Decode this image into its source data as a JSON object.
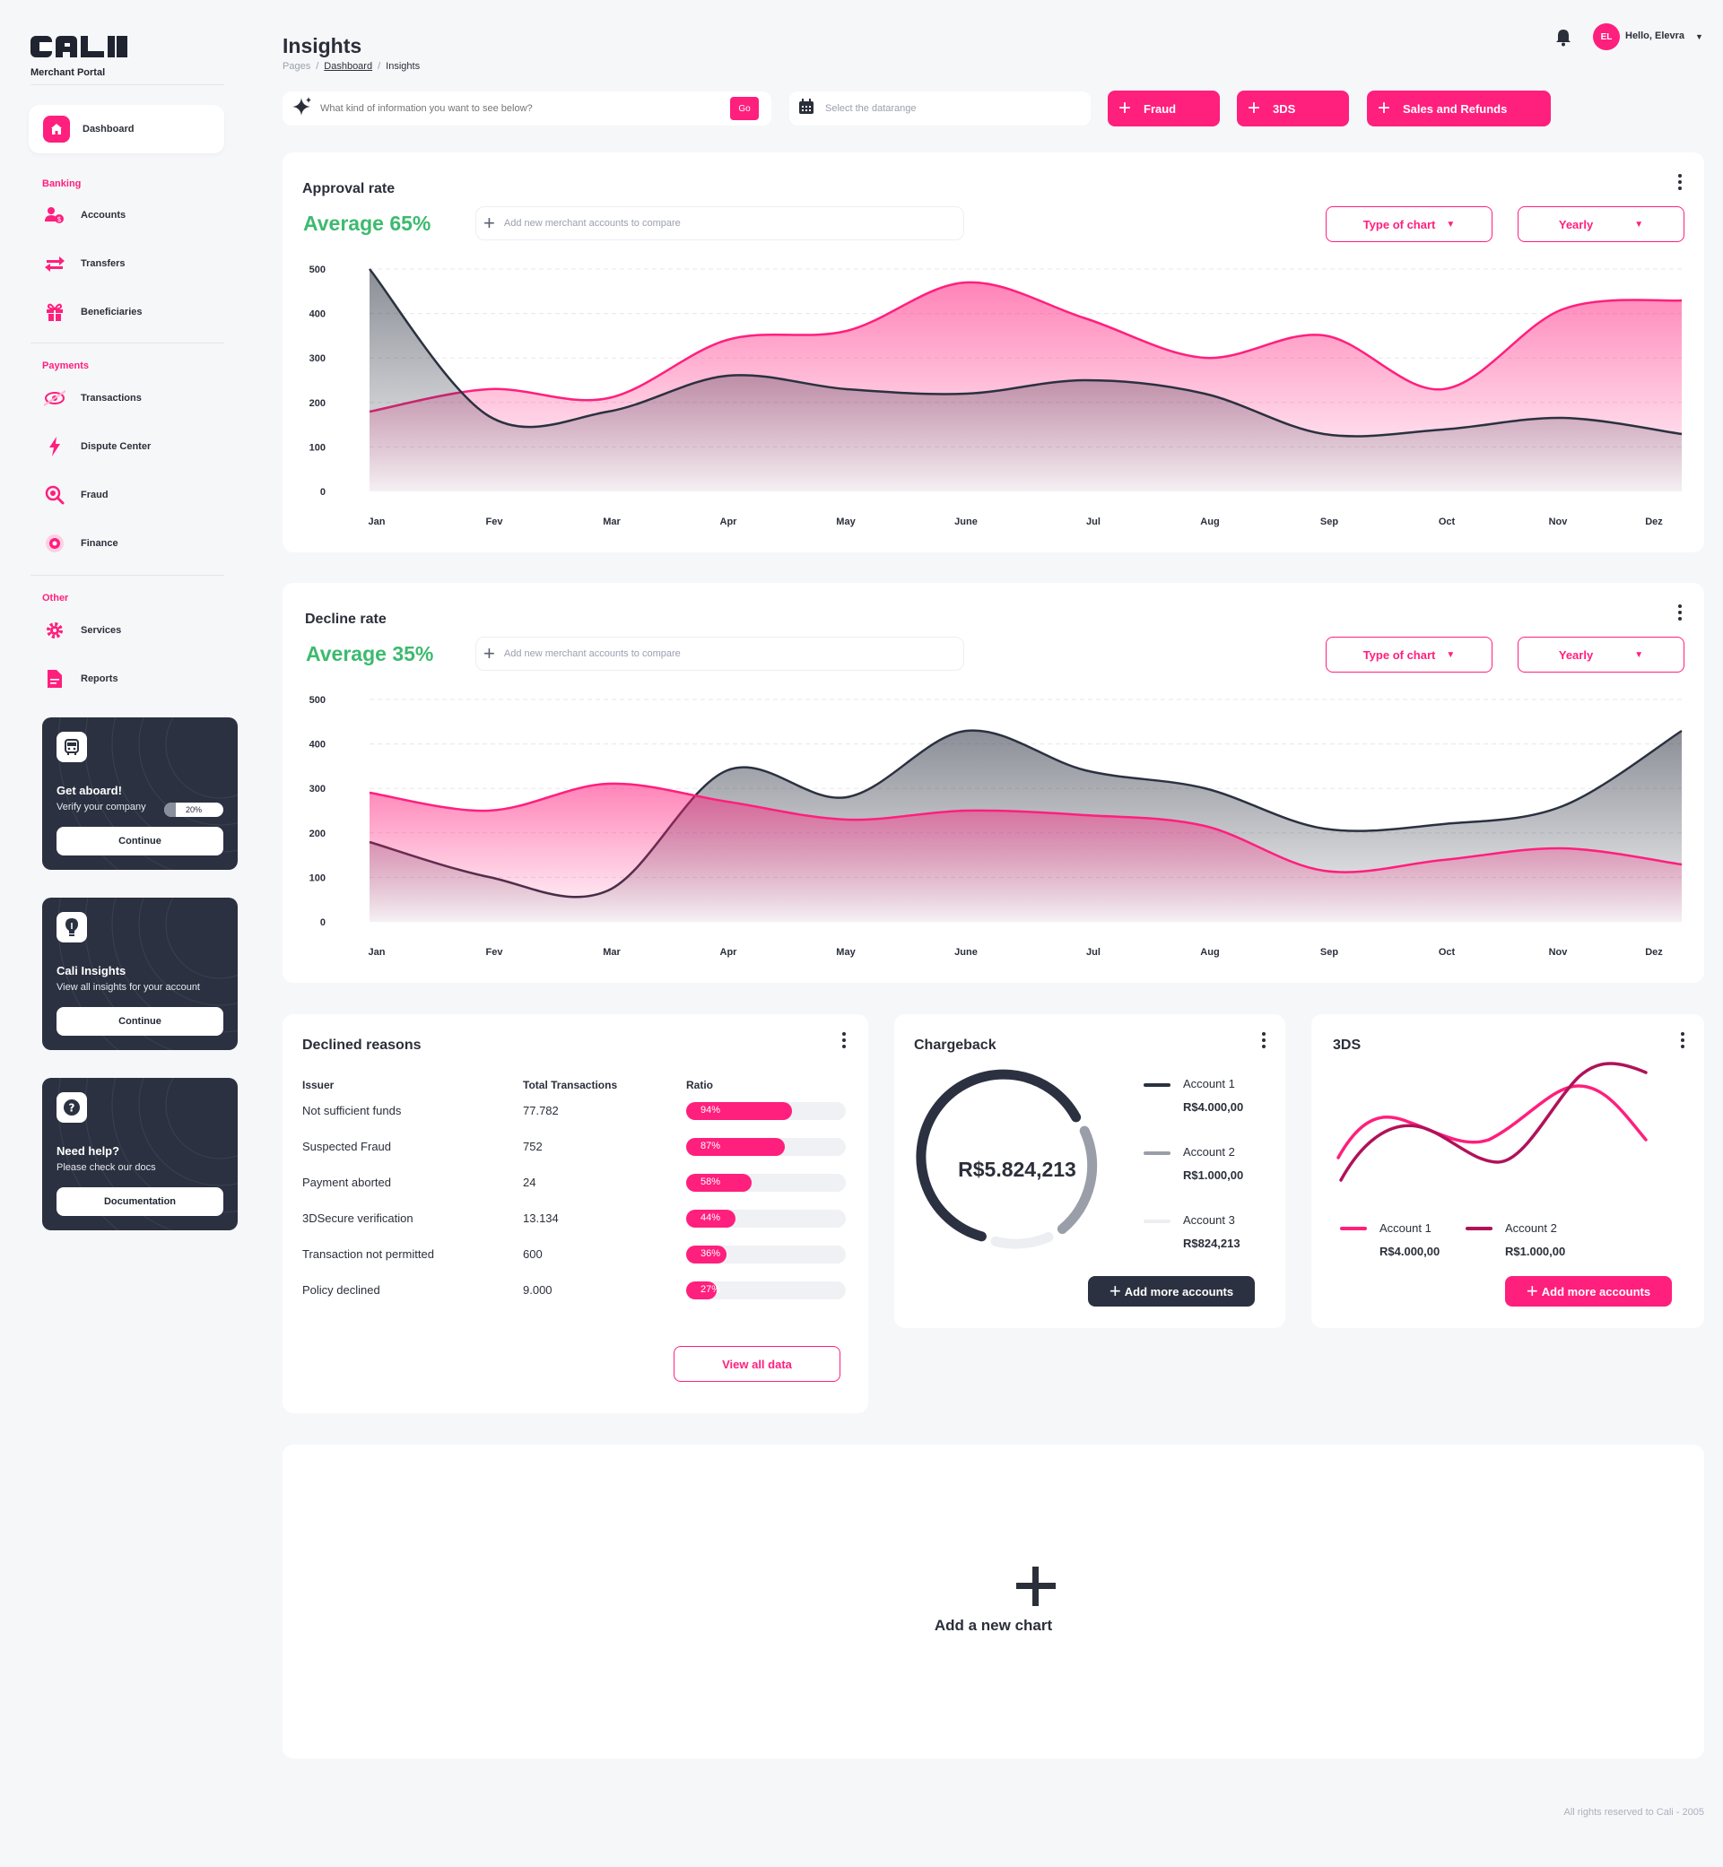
{
  "app": {
    "logo": "CALI",
    "subtitle": "Merchant Portal"
  },
  "nav": {
    "dashboard": "Dashboard",
    "sections": {
      "banking": "Banking",
      "payments": "Payments",
      "other": "Other"
    },
    "banking": [
      "Accounts",
      "Transfers",
      "Beneficiaries"
    ],
    "payments": [
      "Transactions",
      "Dispute Center",
      "Fraud",
      "Finance"
    ],
    "other": [
      "Services",
      "Reports"
    ]
  },
  "promos": [
    {
      "title": "Get aboard!",
      "subtitle": "Verify your company",
      "progress": "20%",
      "progress_value": 0.2,
      "button": "Continue"
    },
    {
      "title": "Cali Insights",
      "subtitle": "View all insights for your account",
      "button": "Continue"
    },
    {
      "title": "Need help?",
      "subtitle": "Please check our docs",
      "button": "Documentation"
    }
  ],
  "header": {
    "title": "Insights",
    "breadcrumb": [
      "Pages",
      "Dashboard",
      "Insights"
    ],
    "avatar": "EL",
    "greeting": "Hello, Elevra"
  },
  "toolbar": {
    "search_placeholder": "What kind of information you want to see below?",
    "go": "Go",
    "date_placeholder": "Select the datarange",
    "buttons": [
      "Fraud",
      "3DS",
      "Sales and Refunds"
    ]
  },
  "approval": {
    "title": "Approval rate",
    "average": "Average 65%",
    "compare_placeholder": "Add new merchant accounts to compare",
    "type_button": "Type of chart",
    "period_button": "Yearly"
  },
  "decline": {
    "title": "Decline rate",
    "average": "Average 35%",
    "compare_placeholder": "Add new merchant accounts to compare",
    "type_button": "Type of chart",
    "period_button": "Yearly"
  },
  "chart_data": [
    {
      "type": "area",
      "title": "Approval rate",
      "categories": [
        "Jan",
        "Fev",
        "Mar",
        "Apr",
        "May",
        "June",
        "Jul",
        "Aug",
        "Sep",
        "Oct",
        "Nov",
        "Dez"
      ],
      "ylim": [
        0,
        500
      ],
      "yticks": [
        0,
        100,
        200,
        300,
        400,
        500
      ],
      "grid": true,
      "colors": {
        "pink": "#ff1f7d",
        "dark": "#2b3140"
      },
      "series": [
        {
          "values": [
            180,
            230,
            210,
            340,
            360,
            470,
            390,
            300,
            350,
            230,
            410,
            430
          ]
        },
        {
          "values": [
            500,
            170,
            180,
            260,
            230,
            220,
            250,
            220,
            130,
            140,
            165,
            130
          ]
        }
      ]
    },
    {
      "type": "area",
      "title": "Decline rate",
      "categories": [
        "Jan",
        "Fev",
        "Mar",
        "Apr",
        "May",
        "June",
        "Jul",
        "Aug",
        "Sep",
        "Oct",
        "Nov",
        "Dez"
      ],
      "ylim": [
        0,
        500
      ],
      "yticks": [
        0,
        100,
        200,
        300,
        400,
        500
      ],
      "grid": true,
      "colors": {
        "pink": "#ff1f7d",
        "dark": "#2b3140"
      },
      "series": [
        {
          "values": [
            290,
            250,
            310,
            270,
            230,
            250,
            240,
            215,
            115,
            140,
            165,
            130
          ]
        },
        {
          "values": [
            180,
            100,
            70,
            340,
            280,
            430,
            340,
            300,
            210,
            220,
            260,
            430
          ]
        }
      ]
    }
  ],
  "declined": {
    "title": "Declined reasons",
    "headers": [
      "Issuer",
      "Total Transactions",
      "Ratio"
    ],
    "rows": [
      {
        "issuer": "Not sufficient funds",
        "total": "77.782",
        "ratio": "94%",
        "value": 0.94
      },
      {
        "issuer": "Suspected Fraud",
        "total": "752",
        "ratio": "87%",
        "value": 0.87
      },
      {
        "issuer": "Payment aborted",
        "total": "24",
        "ratio": "58%",
        "value": 0.58
      },
      {
        "issuer": "3DSecure verification",
        "total": "13.134",
        "ratio": "44%",
        "value": 0.44
      },
      {
        "issuer": "Transaction not permitted",
        "total": "600",
        "ratio": "36%",
        "value": 0.36
      },
      {
        "issuer": "Policy declined",
        "total": "9.000",
        "ratio": "27%",
        "value": 0.27
      }
    ],
    "button": "View all data"
  },
  "chargeback": {
    "title": "Chargeback",
    "total": "R$5.824,213",
    "accounts": [
      {
        "name": "Account 1",
        "value": "R$4.000,00",
        "color": "#2b3140"
      },
      {
        "name": "Account 2",
        "value": "R$1.000,00",
        "color": "#9a9ea8"
      },
      {
        "name": "Account 3",
        "value": "R$824,213",
        "color": "#eceef2"
      }
    ],
    "button": "Add more accounts"
  },
  "threeds": {
    "title": "3DS",
    "accounts": [
      {
        "name": "Account 1",
        "value": "R$4.000,00",
        "color": "#ff1f7d"
      },
      {
        "name": "Account 2",
        "value": "R$1.000,00",
        "color": "#b0125a"
      }
    ],
    "button": "Add more accounts"
  },
  "add_chart": "Add a new chart",
  "footer": "All rights reserved to Cali - 2005"
}
